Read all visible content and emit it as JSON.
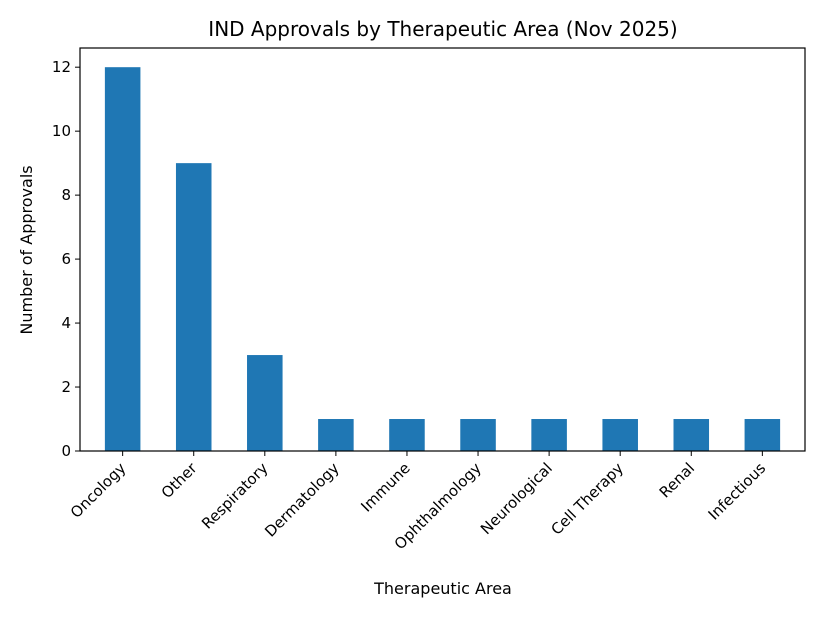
{
  "chart_data": {
    "type": "bar",
    "title": "IND Approvals by Therapeutic Area (Nov 2025)",
    "xlabel": "Therapeutic Area",
    "ylabel": "Number of Approvals",
    "categories": [
      "Oncology",
      "Other",
      "Respiratory",
      "Dermatology",
      "Immune",
      "Ophthalmology",
      "Neurological",
      "Cell Therapy",
      "Renal",
      "Infectious"
    ],
    "values": [
      12,
      9,
      3,
      1,
      1,
      1,
      1,
      1,
      1,
      1
    ],
    "yticks": [
      0,
      2,
      4,
      6,
      8,
      10,
      12
    ],
    "ylim": [
      0,
      12.6
    ],
    "grid": false,
    "legend": "none",
    "bar_color": "#1f77b4"
  }
}
